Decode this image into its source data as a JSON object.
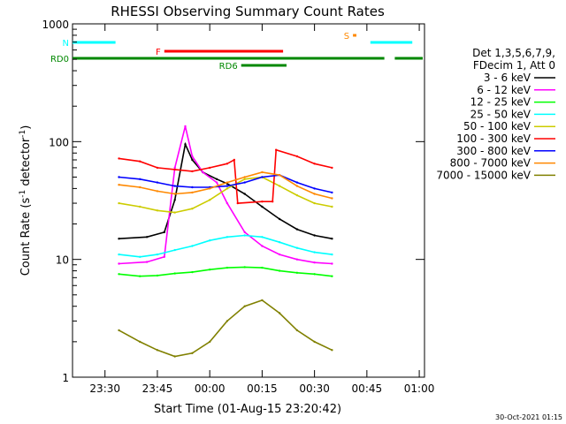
{
  "chart_data": {
    "type": "line",
    "title": "RHESSI Observing Summary Count Rates",
    "xlabel": "Start Time (01-Aug-15 23:20:42)",
    "ylabel": "Count Rate (s",
    "ylabel_sup": "-1",
    "ylabel_mid": " detector",
    "ylabel_sup2": "-1",
    "ylabel_end": ")",
    "yscale": "log",
    "ylim": [
      1,
      1000
    ],
    "xlim": [
      "23:20:42",
      "01:01:30"
    ],
    "xtick_labels": [
      "23:30",
      "23:45",
      "00:00",
      "00:15",
      "00:30",
      "00:45",
      "01:00"
    ],
    "ytick_labels": [
      "1",
      "10",
      "100",
      "1000"
    ],
    "timestamp": "30-Oct-2021 01:15",
    "legend_header": [
      "Det 1,3,5,6,7,9,",
      "FDecim 1, Att 0"
    ],
    "legend_position": "right",
    "series": [
      {
        "name": "3 - 6 keV",
        "color": "#000000",
        "points": [
          [
            "23:34",
            15
          ],
          [
            "23:42",
            15.5
          ],
          [
            "23:47",
            17
          ],
          [
            "23:50",
            32
          ],
          [
            "23:53",
            95
          ],
          [
            "23:55",
            70
          ],
          [
            "23:58",
            55
          ],
          [
            "00:02",
            48
          ],
          [
            "00:05",
            44
          ],
          [
            "00:10",
            36
          ],
          [
            "00:15",
            28
          ],
          [
            "00:20",
            22
          ],
          [
            "00:25",
            18
          ],
          [
            "00:30",
            16
          ],
          [
            "00:35",
            15
          ]
        ]
      },
      {
        "name": "6 - 12 keV",
        "color": "#ff00ff",
        "points": [
          [
            "23:34",
            9.2
          ],
          [
            "23:42",
            9.5
          ],
          [
            "23:47",
            10.5
          ],
          [
            "23:50",
            60
          ],
          [
            "23:53",
            135
          ],
          [
            "23:55",
            75
          ],
          [
            "23:58",
            55
          ],
          [
            "00:02",
            45
          ],
          [
            "00:05",
            30
          ],
          [
            "00:10",
            17
          ],
          [
            "00:15",
            13
          ],
          [
            "00:20",
            11
          ],
          [
            "00:25",
            10
          ],
          [
            "00:30",
            9.4
          ],
          [
            "00:35",
            9.2
          ]
        ]
      },
      {
        "name": "12 - 25 keV",
        "color": "#00ff00",
        "points": [
          [
            "23:34",
            7.5
          ],
          [
            "23:40",
            7.2
          ],
          [
            "23:45",
            7.3
          ],
          [
            "23:50",
            7.6
          ],
          [
            "23:55",
            7.8
          ],
          [
            "00:00",
            8.2
          ],
          [
            "00:05",
            8.5
          ],
          [
            "00:10",
            8.6
          ],
          [
            "00:15",
            8.5
          ],
          [
            "00:20",
            8.0
          ],
          [
            "00:25",
            7.7
          ],
          [
            "00:30",
            7.5
          ],
          [
            "00:35",
            7.2
          ]
        ]
      },
      {
        "name": "25 - 50 keV",
        "color": "#00ffff",
        "points": [
          [
            "23:34",
            11
          ],
          [
            "23:40",
            10.5
          ],
          [
            "23:45",
            11
          ],
          [
            "23:50",
            12
          ],
          [
            "23:55",
            13
          ],
          [
            "00:00",
            14.5
          ],
          [
            "00:05",
            15.5
          ],
          [
            "00:10",
            16
          ],
          [
            "00:15",
            15.5
          ],
          [
            "00:20",
            14
          ],
          [
            "00:25",
            12.5
          ],
          [
            "00:30",
            11.5
          ],
          [
            "00:35",
            11
          ]
        ]
      },
      {
        "name": "50 - 100 keV",
        "color": "#cccc00",
        "points": [
          [
            "23:34",
            30
          ],
          [
            "23:40",
            28
          ],
          [
            "23:45",
            26
          ],
          [
            "23:50",
            25
          ],
          [
            "23:55",
            27
          ],
          [
            "00:00",
            32
          ],
          [
            "00:05",
            40
          ],
          [
            "00:10",
            48
          ],
          [
            "00:15",
            50
          ],
          [
            "00:20",
            42
          ],
          [
            "00:25",
            35
          ],
          [
            "00:30",
            30
          ],
          [
            "00:35",
            28
          ]
        ]
      },
      {
        "name": "100 - 300 keV",
        "color": "#ff0000",
        "points": [
          [
            "23:34",
            72
          ],
          [
            "23:40",
            68
          ],
          [
            "23:45",
            60
          ],
          [
            "23:50",
            58
          ],
          [
            "23:55",
            56
          ],
          [
            "00:00",
            60
          ],
          [
            "00:05",
            65
          ],
          [
            "00:07",
            70
          ],
          [
            "00:08",
            30
          ],
          [
            "00:15",
            31
          ],
          [
            "00:18",
            31
          ],
          [
            "00:19",
            85
          ],
          [
            "00:25",
            75
          ],
          [
            "00:30",
            65
          ],
          [
            "00:35",
            60
          ]
        ]
      },
      {
        "name": "300 - 800 keV",
        "color": "#0000ff",
        "points": [
          [
            "23:34",
            50
          ],
          [
            "23:40",
            48
          ],
          [
            "23:45",
            45
          ],
          [
            "23:50",
            42
          ],
          [
            "23:55",
            41
          ],
          [
            "00:00",
            41
          ],
          [
            "00:05",
            42
          ],
          [
            "00:10",
            45
          ],
          [
            "00:15",
            50
          ],
          [
            "00:20",
            52
          ],
          [
            "00:25",
            45
          ],
          [
            "00:30",
            40
          ],
          [
            "00:35",
            37
          ]
        ]
      },
      {
        "name": "800 - 7000 keV",
        "color": "#ff8800",
        "points": [
          [
            "23:34",
            43
          ],
          [
            "23:40",
            41
          ],
          [
            "23:45",
            38
          ],
          [
            "23:50",
            36
          ],
          [
            "23:55",
            37
          ],
          [
            "00:00",
            40
          ],
          [
            "00:05",
            45
          ],
          [
            "00:10",
            50
          ],
          [
            "00:15",
            55
          ],
          [
            "00:20",
            52
          ],
          [
            "00:25",
            42
          ],
          [
            "00:30",
            36
          ],
          [
            "00:35",
            33
          ]
        ]
      },
      {
        "name": "7000 - 15000 keV",
        "color": "#808000",
        "points": [
          [
            "23:34",
            2.5
          ],
          [
            "23:40",
            2.0
          ],
          [
            "23:45",
            1.7
          ],
          [
            "23:50",
            1.5
          ],
          [
            "23:55",
            1.6
          ],
          [
            "00:00",
            2.0
          ],
          [
            "00:05",
            3.0
          ],
          [
            "00:10",
            4.0
          ],
          [
            "00:15",
            4.5
          ],
          [
            "00:20",
            3.5
          ],
          [
            "00:25",
            2.5
          ],
          [
            "00:30",
            2.0
          ],
          [
            "00:35",
            1.7
          ]
        ]
      }
    ],
    "flag_bars": [
      {
        "label": "N",
        "color": "#00ffff",
        "segments": [
          [
            "23:20:42",
            "23:33"
          ],
          [
            "00:46",
            "00:58"
          ]
        ]
      },
      {
        "label": "F",
        "color": "#ff0000",
        "segments": [
          [
            "23:47",
            "00:21"
          ]
        ]
      },
      {
        "label": "RD0",
        "color": "#008800",
        "segments": [
          [
            "23:20:42",
            "00:22"
          ],
          [
            "00:22",
            "00:50"
          ],
          [
            "00:53",
            "01:01"
          ]
        ]
      },
      {
        "label": "RD6",
        "color": "#008800",
        "segments": [
          [
            "00:09",
            "00:22"
          ]
        ]
      },
      {
        "label": "S",
        "color": "#ff8800",
        "segments": [
          [
            "00:41",
            "00:42"
          ]
        ]
      }
    ]
  }
}
